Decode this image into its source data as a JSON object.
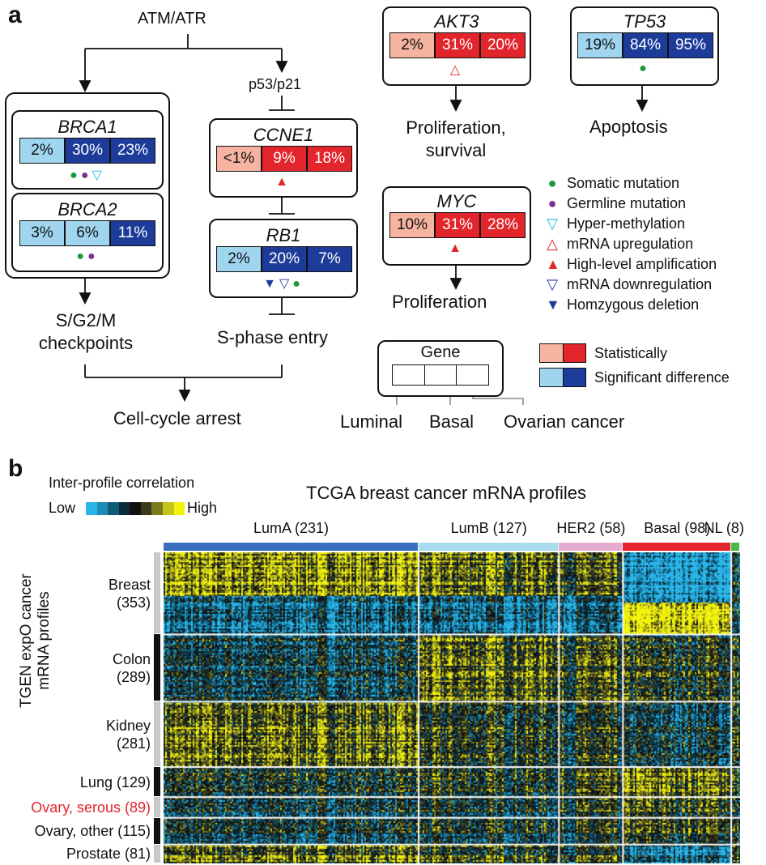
{
  "panel_a": {
    "letter": "a",
    "atm_atr": "ATM/ATR",
    "p53_p21": "p53/p21",
    "genes": {
      "brca1": {
        "name": "BRCA1",
        "values": [
          "2%",
          "30%",
          "23%"
        ]
      },
      "brca2": {
        "name": "BRCA2",
        "values": [
          "3%",
          "6%",
          "11%"
        ]
      },
      "ccne1": {
        "name": "CCNE1",
        "values": [
          "<1%",
          "9%",
          "18%"
        ]
      },
      "rb1": {
        "name": "RB1",
        "values": [
          "2%",
          "20%",
          "7%"
        ]
      },
      "akt3": {
        "name": "AKT3",
        "values": [
          "2%",
          "31%",
          "20%"
        ]
      },
      "tp53": {
        "name": "TP53",
        "values": [
          "19%",
          "84%",
          "95%"
        ]
      },
      "myc": {
        "name": "MYC",
        "values": [
          "10%",
          "31%",
          "28%"
        ]
      }
    },
    "outcomes": {
      "checkpoints_1": "S/G2/M",
      "checkpoints_2": "checkpoints",
      "s_phase": "S-phase entry",
      "cell_cycle_arrest": "Cell-cycle arrest",
      "prolif_survival_1": "Proliferation,",
      "prolif_survival_2": "survival",
      "apoptosis": "Apoptosis",
      "proliferation": "Proliferation"
    },
    "legend": [
      {
        "symbol": "●",
        "color": "#1a9a3a",
        "label": "Somatic mutation"
      },
      {
        "symbol": "●",
        "color": "#7b3294",
        "label": "Germline mutation"
      },
      {
        "symbol": "▽",
        "color": "#1fb4e6",
        "label": "Hyper-methylation"
      },
      {
        "symbol": "△",
        "color": "#e2242b",
        "label": "mRNA upregulation"
      },
      {
        "symbol": "▲",
        "color": "#e2242b",
        "label": "High-level amplification"
      },
      {
        "symbol": "▽",
        "color": "#1d3b99",
        "label": "mRNA downregulation"
      },
      {
        "symbol": "▼",
        "color": "#1d3b99",
        "label": "Homzygous deletion"
      }
    ],
    "key": {
      "gene": "Gene",
      "luminal": "Luminal",
      "basal": "Basal",
      "ovarian": "Ovarian cancer",
      "statistically": "Statistically",
      "significant": "Significant difference"
    }
  },
  "panel_b": {
    "letter": "b",
    "colorbar_title": "Inter-profile correlation",
    "low": "Low",
    "high": "High",
    "colorbar_colors": [
      "#2ab4e8",
      "#1c8cb6",
      "#0f5c7a",
      "#0a2c3a",
      "#111111",
      "#3a3a1a",
      "#7a7a1c",
      "#c4c41a",
      "#f2f20a"
    ],
    "title": "TCGA breast cancer mRNA profiles",
    "y_title_1": "TGEN expO cancer",
    "y_title_2": "mRNA profiles",
    "columns": [
      {
        "label": "LumA (231)",
        "color": "#3a6fbf",
        "n": 231
      },
      {
        "label": "LumB (127)",
        "color": "#a9dcef",
        "n": 127
      },
      {
        "label": "HER2 (58)",
        "color": "#e6acd0",
        "n": 58
      },
      {
        "label": "Basal (98)",
        "color": "#e2242b",
        "n": 98
      },
      {
        "label": "NL (8)",
        "color": "#4cb84a",
        "n": 8
      }
    ],
    "rows": [
      {
        "label_1": "Breast",
        "label_2": "(353)",
        "n": 353
      },
      {
        "label_1": "Colon",
        "label_2": "(289)",
        "n": 289
      },
      {
        "label_1": "Kidney",
        "label_2": "(281)",
        "n": 281
      },
      {
        "label_1": "Lung (129)",
        "label_2": "",
        "n": 129
      },
      {
        "label_1": "Ovary, serous (89)",
        "label_2": "",
        "n": 89,
        "highlight": "#e2242b"
      },
      {
        "label_1": "Ovary, other (115)",
        "label_2": "",
        "n": 115
      },
      {
        "label_1": "Prostate (81)",
        "label_2": "",
        "n": 81
      }
    ]
  }
}
